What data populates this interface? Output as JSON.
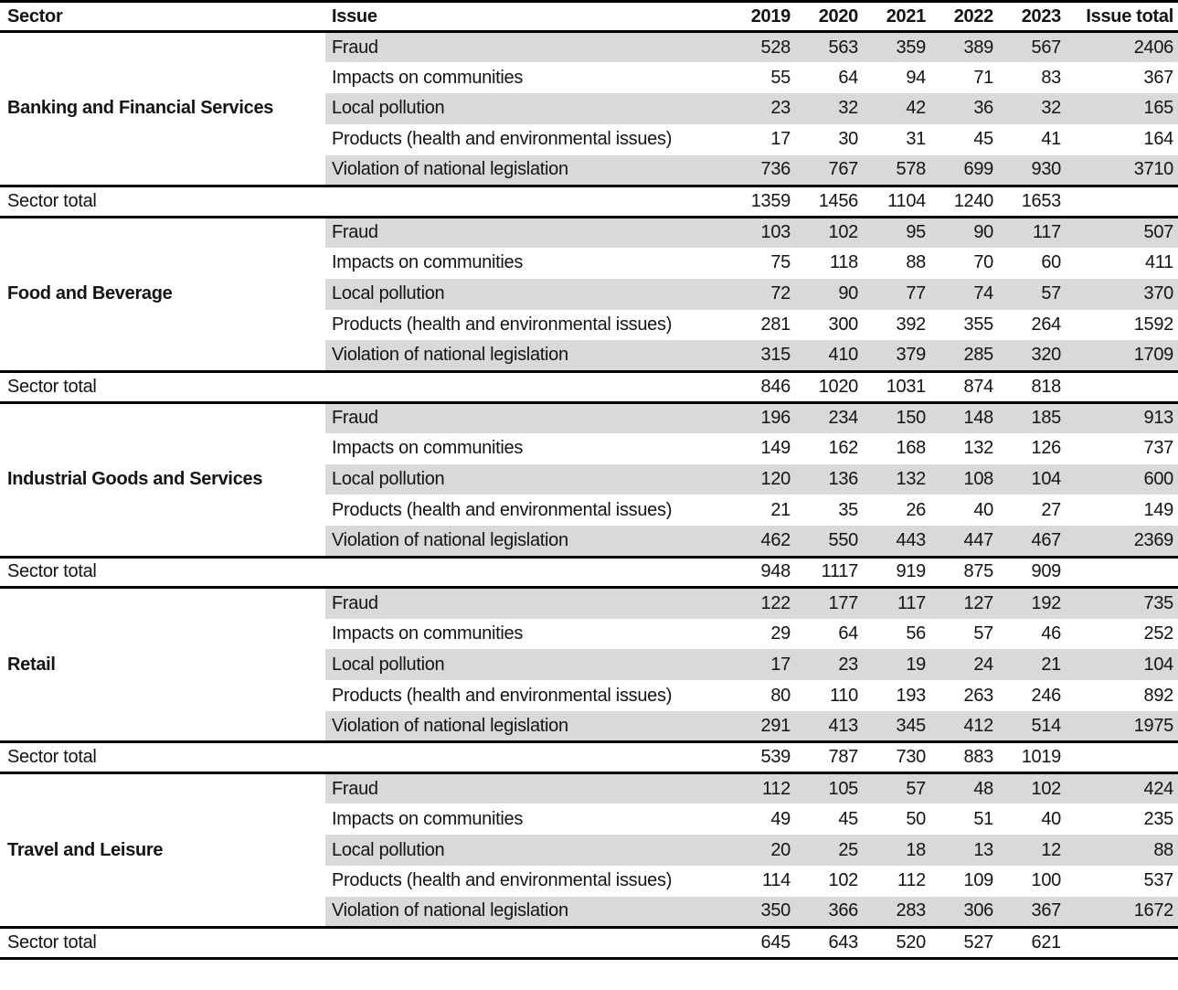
{
  "colors": {
    "row_shade": "#d9d9d9",
    "border": "#000000",
    "text": "#141414",
    "background": "#ffffff"
  },
  "chart_data": {
    "type": "table",
    "columns": [
      "Sector",
      "Issue",
      "2019",
      "2020",
      "2021",
      "2022",
      "2023",
      "Issue total"
    ],
    "sector_total_label": "Sector total",
    "sectors": [
      {
        "name": "Banking and Financial Services",
        "issues": [
          {
            "issue": "Fraud",
            "values": [
              528,
              563,
              359,
              389,
              567
            ],
            "issue_total": 2406
          },
          {
            "issue": "Impacts on communities",
            "values": [
              55,
              64,
              94,
              71,
              83
            ],
            "issue_total": 367
          },
          {
            "issue": "Local pollution",
            "values": [
              23,
              32,
              42,
              36,
              32
            ],
            "issue_total": 165
          },
          {
            "issue": "Products (health and environmental issues)",
            "values": [
              17,
              30,
              31,
              45,
              41
            ],
            "issue_total": 164
          },
          {
            "issue": "Violation of national legislation",
            "values": [
              736,
              767,
              578,
              699,
              930
            ],
            "issue_total": 3710
          }
        ],
        "sector_total": [
          1359,
          1456,
          1104,
          1240,
          1653
        ]
      },
      {
        "name": "Food and Beverage",
        "issues": [
          {
            "issue": "Fraud",
            "values": [
              103,
              102,
              95,
              90,
              117
            ],
            "issue_total": 507
          },
          {
            "issue": "Impacts on communities",
            "values": [
              75,
              118,
              88,
              70,
              60
            ],
            "issue_total": 411
          },
          {
            "issue": "Local pollution",
            "values": [
              72,
              90,
              77,
              74,
              57
            ],
            "issue_total": 370
          },
          {
            "issue": "Products (health and environmental issues)",
            "values": [
              281,
              300,
              392,
              355,
              264
            ],
            "issue_total": 1592
          },
          {
            "issue": "Violation of national legislation",
            "values": [
              315,
              410,
              379,
              285,
              320
            ],
            "issue_total": 1709
          }
        ],
        "sector_total": [
          846,
          1020,
          1031,
          874,
          818
        ]
      },
      {
        "name": "Industrial Goods and Services",
        "issues": [
          {
            "issue": "Fraud",
            "values": [
              196,
              234,
              150,
              148,
              185
            ],
            "issue_total": 913
          },
          {
            "issue": "Impacts on communities",
            "values": [
              149,
              162,
              168,
              132,
              126
            ],
            "issue_total": 737
          },
          {
            "issue": "Local pollution",
            "values": [
              120,
              136,
              132,
              108,
              104
            ],
            "issue_total": 600
          },
          {
            "issue": "Products (health and environmental issues)",
            "values": [
              21,
              35,
              26,
              40,
              27
            ],
            "issue_total": 149
          },
          {
            "issue": "Violation of national legislation",
            "values": [
              462,
              550,
              443,
              447,
              467
            ],
            "issue_total": 2369
          }
        ],
        "sector_total": [
          948,
          1117,
          919,
          875,
          909
        ]
      },
      {
        "name": "Retail",
        "issues": [
          {
            "issue": "Fraud",
            "values": [
              122,
              177,
              117,
              127,
              192
            ],
            "issue_total": 735
          },
          {
            "issue": "Impacts on communities",
            "values": [
              29,
              64,
              56,
              57,
              46
            ],
            "issue_total": 252
          },
          {
            "issue": "Local pollution",
            "values": [
              17,
              23,
              19,
              24,
              21
            ],
            "issue_total": 104
          },
          {
            "issue": "Products (health and environmental issues)",
            "values": [
              80,
              110,
              193,
              263,
              246
            ],
            "issue_total": 892
          },
          {
            "issue": "Violation of national legislation",
            "values": [
              291,
              413,
              345,
              412,
              514
            ],
            "issue_total": 1975
          }
        ],
        "sector_total": [
          539,
          787,
          730,
          883,
          1019
        ]
      },
      {
        "name": "Travel and Leisure",
        "issues": [
          {
            "issue": "Fraud",
            "values": [
              112,
              105,
              57,
              48,
              102
            ],
            "issue_total": 424
          },
          {
            "issue": "Impacts on communities",
            "values": [
              49,
              45,
              50,
              51,
              40
            ],
            "issue_total": 235
          },
          {
            "issue": "Local pollution",
            "values": [
              20,
              25,
              18,
              13,
              12
            ],
            "issue_total": 88
          },
          {
            "issue": "Products (health and environmental issues)",
            "values": [
              114,
              102,
              112,
              109,
              100
            ],
            "issue_total": 537
          },
          {
            "issue": "Violation of national legislation",
            "values": [
              350,
              366,
              283,
              306,
              367
            ],
            "issue_total": 1672
          }
        ],
        "sector_total": [
          645,
          643,
          520,
          527,
          621
        ]
      }
    ]
  }
}
